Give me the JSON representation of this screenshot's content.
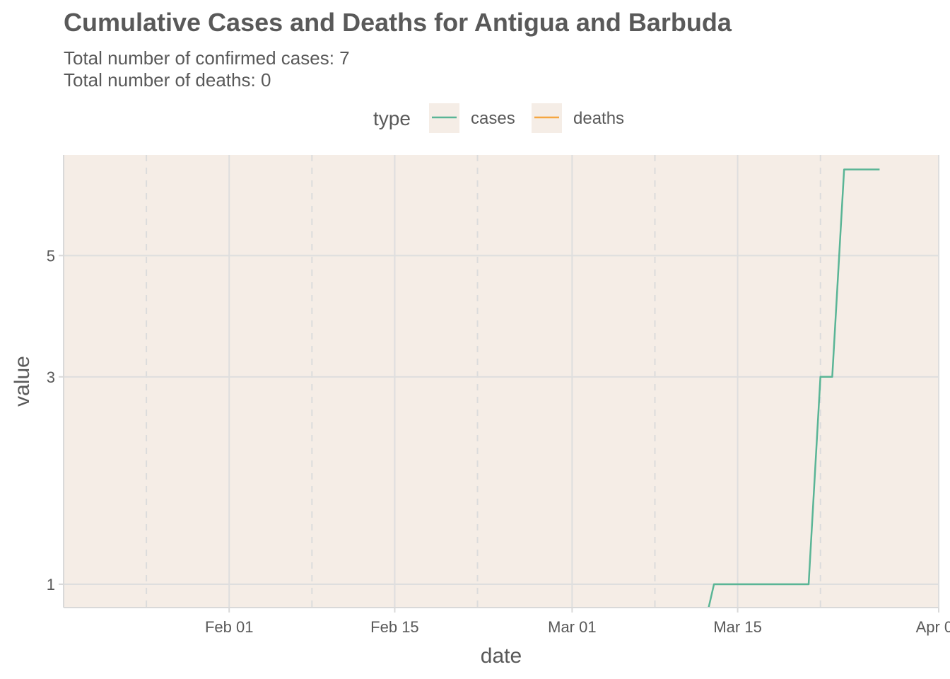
{
  "chart_data": {
    "type": "line",
    "title": "Cumulative Cases and Deaths for Antigua and Barbuda",
    "subtitle": [
      "Total number of confirmed cases: 7",
      "Total number of deaths: 0"
    ],
    "xlabel": "date",
    "ylabel": "value",
    "legend": {
      "title": "type",
      "placement": "top"
    },
    "x_axis": {
      "kind": "date",
      "range": [
        "2020-01-18",
        "2020-04-01"
      ],
      "ticks": [
        {
          "date": "2020-02-01",
          "label": "Feb 01"
        },
        {
          "date": "2020-02-15",
          "label": "Feb 15"
        },
        {
          "date": "2020-03-01",
          "label": "Mar 01"
        },
        {
          "date": "2020-03-15",
          "label": "Mar 15"
        },
        {
          "date": "2020-04-01",
          "label": "Apr 01"
        }
      ],
      "minor_gridlines": [
        "2020-01-25",
        "2020-02-08",
        "2020-02-22",
        "2020-03-08",
        "2020-03-22"
      ]
    },
    "y_axis": {
      "scale": "log1p",
      "range": [
        0.85,
        7.4
      ],
      "ticks": [
        {
          "value": 1,
          "label": "1"
        },
        {
          "value": 3,
          "label": "3"
        },
        {
          "value": 5,
          "label": "5"
        }
      ]
    },
    "grid": true,
    "background": "#F5EDE6",
    "series": [
      {
        "name": "cases",
        "color": "#5AB596",
        "points": [
          {
            "x": "2020-01-22",
            "y": 0
          },
          {
            "x": "2020-03-12",
            "y": 0
          },
          {
            "x": "2020-03-13",
            "y": 1
          },
          {
            "x": "2020-03-20",
            "y": 1
          },
          {
            "x": "2020-03-21",
            "y": 1
          },
          {
            "x": "2020-03-22",
            "y": 3
          },
          {
            "x": "2020-03-23",
            "y": 3
          },
          {
            "x": "2020-03-24",
            "y": 7
          },
          {
            "x": "2020-03-27",
            "y": 7
          }
        ]
      },
      {
        "name": "deaths",
        "color": "#F5A641",
        "points": [
          {
            "x": "2020-01-22",
            "y": 0
          },
          {
            "x": "2020-03-27",
            "y": 0
          }
        ]
      }
    ]
  }
}
